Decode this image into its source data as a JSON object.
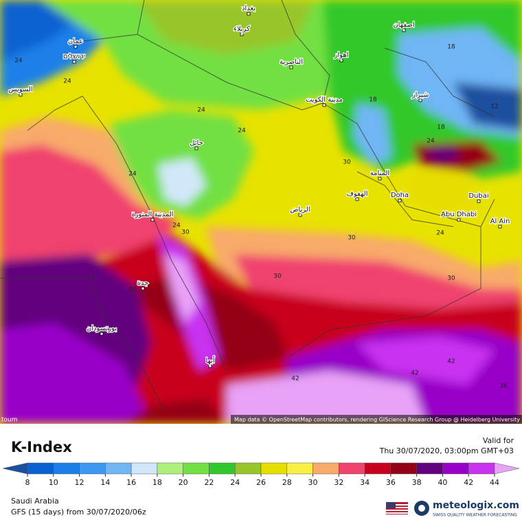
{
  "title": "K-Index",
  "valid_label": "Valid for",
  "valid_time": "Thu 30/07/2020, 03:00pm GMT+03",
  "region": "Saudi Arabia",
  "model_run": "GFS (15 days) from 30/07/2020/06z",
  "attribution": "Map data © OpenStreetMap contributors, rendering GIScience Research Group @ Heidelberg University",
  "corner_label": "toum",
  "brand": {
    "name": "meteologix.com",
    "tagline": "SWISS QUALITY WEATHER FORECASTING"
  },
  "legend": {
    "ticks": [
      8,
      10,
      12,
      14,
      16,
      18,
      20,
      22,
      24,
      26,
      28,
      30,
      32,
      34,
      36,
      38,
      40,
      42,
      44
    ],
    "colors": [
      "#1a4f9e",
      "#0a62d2",
      "#1a80e8",
      "#3c98f0",
      "#70b6f5",
      "#d2e8fa",
      "#aef07c",
      "#72e042",
      "#30c82c",
      "#98c62a",
      "#e6de00",
      "#f8f044",
      "#f8aa6a",
      "#f0426e",
      "#c8001e",
      "#940016",
      "#62007e",
      "#9800c8",
      "#c832f0",
      "#e8a2f8"
    ]
  },
  "map": {
    "places": [
      {
        "label": "بغداد"
      },
      {
        "label": "كربلاء"
      },
      {
        "label": "اصفهان"
      },
      {
        "label": "اهواز"
      },
      {
        "label": "الناصرية"
      },
      {
        "label": "شيراز"
      },
      {
        "label": "مدينة الكويت"
      },
      {
        "label": "حائل"
      },
      {
        "label": "المنامة"
      },
      {
        "label": "الهفوف"
      },
      {
        "label": "Doha"
      },
      {
        "label": "Dubai"
      },
      {
        "label": "Abu Dhabi"
      },
      {
        "label": "Al Ain"
      },
      {
        "label": "الرياض"
      },
      {
        "label": "المدينة المنورة"
      },
      {
        "label": "جدة"
      },
      {
        "label": "بورتسودان"
      },
      {
        "label": "أبها"
      },
      {
        "label": "عمان"
      },
      {
        "label": "السويس"
      },
      {
        "label": "ירושלים"
      }
    ],
    "contour_labels": [
      "18",
      "12",
      "18",
      "18",
      "24",
      "24",
      "24",
      "24",
      "24",
      "30",
      "24",
      "30",
      "30",
      "24",
      "30",
      "30",
      "30",
      "42",
      "42",
      "42",
      "36",
      "24"
    ]
  }
}
